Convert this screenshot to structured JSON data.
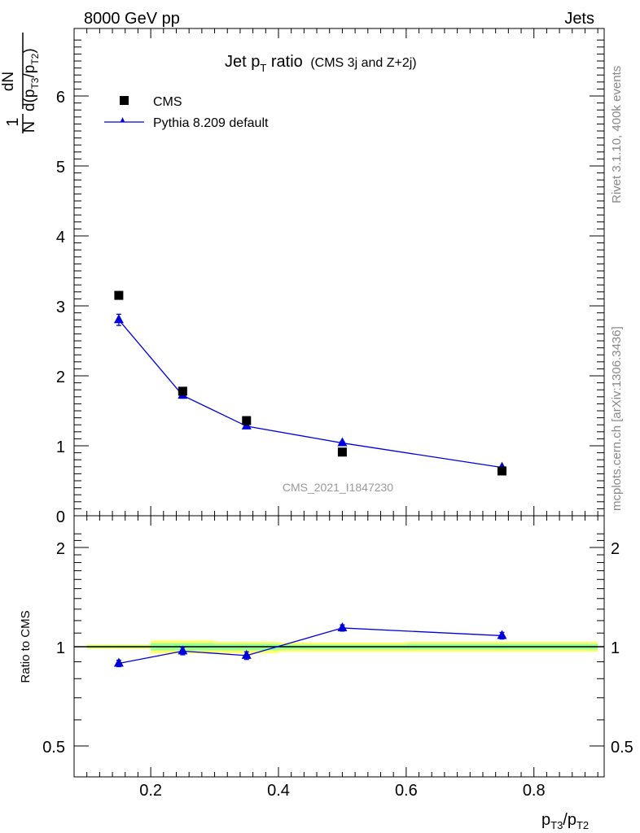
{
  "header": {
    "left": "8000 GeV pp",
    "right": "Jets"
  },
  "side_labels": {
    "rivet": "Rivet 3.1.10,  400k events",
    "mcplots": "mcplots.cern.ch [arXiv:1306.3436]"
  },
  "title": {
    "main_prefix": "Jet p",
    "main_sub": "T",
    "main_suffix": " ratio",
    "note": "(CMS 3j and Z+2j)"
  },
  "watermark": "CMS_2021_I1847230",
  "axis_labels": {
    "y_top_num": "1",
    "y_top_den": "N",
    "y_top_dn": "dN",
    "y_top_d": "d(p",
    "y_top_sub1": "T3",
    "y_top_mid": "/p",
    "y_top_sub2": "T2",
    "y_top_close": ")",
    "y_bottom": "Ratio to CMS",
    "x_p1": "p",
    "x_sub1": "T3",
    "x_slash": "/p",
    "x_sub2": "T2"
  },
  "legend": {
    "data": "CMS",
    "mc": "Pythia 8.209 default"
  },
  "colors": {
    "mc": "#0000dd",
    "data": "#000000",
    "band_outer": "#ffff66",
    "band_inner": "#99ff99"
  },
  "chart_data": [
    {
      "type": "scatter",
      "panel": "main",
      "xlim": [
        0.08,
        0.91
      ],
      "ylim": [
        0,
        7
      ],
      "yticks": [
        0,
        1,
        2,
        3,
        4,
        5,
        6
      ],
      "series": [
        {
          "name": "CMS",
          "x": [
            0.15,
            0.25,
            0.35,
            0.5,
            0.75
          ],
          "y": [
            3.15,
            1.78,
            1.36,
            0.91,
            0.64
          ]
        },
        {
          "name": "Pythia 8.209 default",
          "x": [
            0.15,
            0.25,
            0.35,
            0.5,
            0.75
          ],
          "y": [
            2.8,
            1.72,
            1.28,
            1.04,
            0.69
          ],
          "yerr": [
            0.08,
            0.04,
            0.03,
            0.02,
            0.015
          ]
        }
      ]
    },
    {
      "type": "line",
      "panel": "ratio",
      "ylabel": "Ratio to CMS",
      "xlim": [
        0.08,
        0.91
      ],
      "ylim": [
        0.42,
        2.3
      ],
      "yticks": [
        0.5,
        1,
        2
      ],
      "xticks": [
        0.2,
        0.4,
        0.6,
        0.8
      ],
      "bands": [
        {
          "x0": 0.1,
          "x1": 0.2,
          "outer": [
            0.985,
            1.015
          ],
          "inner": [
            0.992,
            1.008
          ]
        },
        {
          "x0": 0.2,
          "x1": 0.3,
          "outer": [
            0.955,
            1.045
          ],
          "inner": [
            0.975,
            1.025
          ]
        },
        {
          "x0": 0.3,
          "x1": 0.4,
          "outer": [
            0.955,
            1.035
          ],
          "inner": [
            0.975,
            1.02
          ]
        },
        {
          "x0": 0.4,
          "x1": 0.6,
          "outer": [
            0.965,
            1.03
          ],
          "inner": [
            0.98,
            1.015
          ]
        },
        {
          "x0": 0.6,
          "x1": 0.9,
          "outer": [
            0.965,
            1.035
          ],
          "inner": [
            0.98,
            1.02
          ]
        }
      ],
      "series": [
        {
          "name": "Pythia 8.209 default",
          "x": [
            0.15,
            0.25,
            0.35,
            0.5,
            0.75
          ],
          "y": [
            0.89,
            0.97,
            0.94,
            1.14,
            1.08
          ],
          "yerr": [
            0.02,
            0.025,
            0.025,
            0.025,
            0.025
          ]
        }
      ]
    }
  ]
}
